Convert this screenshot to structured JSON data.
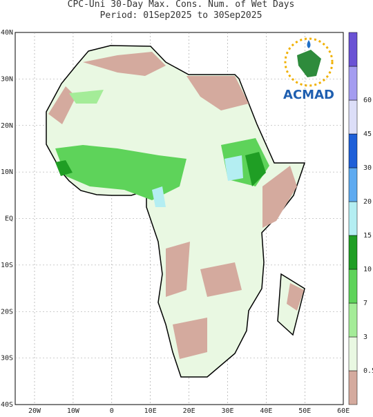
{
  "title": [
    "CPC-Uni 30-Day Max. Cons. Num. of Wet Days",
    "Period: 01Sep2025 to 30Sep2025"
  ],
  "map": {
    "lat_labels": [
      "40N",
      "30N",
      "20N",
      "10N",
      "EQ",
      "10S",
      "20S",
      "30S",
      "40S"
    ],
    "lon_labels": [
      "20W",
      "10W",
      "0",
      "10E",
      "20E",
      "30E",
      "40E",
      "50E",
      "60E"
    ]
  },
  "legend": {
    "labels": [
      "0.5",
      "3",
      "7",
      "10",
      "15",
      "20",
      "30",
      "45",
      "60"
    ],
    "colors": [
      "#d4aa9e",
      "#e9f8e2",
      "#a4ec98",
      "#5ed35a",
      "#1f9e24",
      "#b4eef2",
      "#5eaaf0",
      "#1e5fd8",
      "#dcdef8",
      "#a49cf0",
      "#6a52d4"
    ]
  },
  "logo": "ACMAD"
}
